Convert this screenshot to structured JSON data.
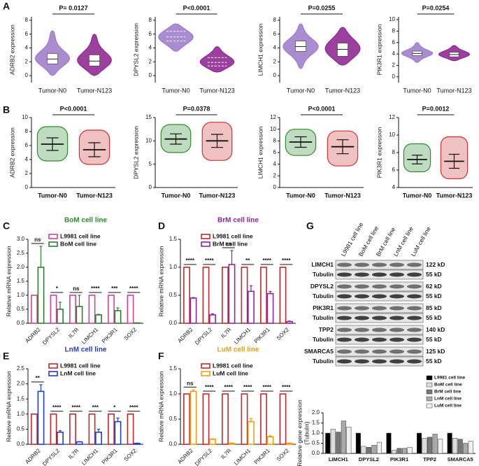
{
  "panel_labels": [
    "A",
    "B",
    "C",
    "D",
    "E",
    "F",
    "G"
  ],
  "chart_data": [
    {
      "type": "violin",
      "ylabel": "ADRB2 expression",
      "pvalue": "P= 0.0127",
      "inner": "box",
      "categories": [
        "Tumor-N0",
        "Tumor-N123"
      ],
      "colors": [
        "#9b78c8",
        "#8b1f8f"
      ],
      "stats": [
        {
          "min": 0,
          "q1": 1.7,
          "median": 2.4,
          "q3": 3.2,
          "max": 6.5
        },
        {
          "min": 0,
          "q1": 1.4,
          "median": 2.1,
          "q3": 3,
          "max": 6
        }
      ],
      "ylim": [
        -1,
        8.5
      ],
      "yticks": [
        0,
        2,
        4,
        6,
        8
      ]
    },
    {
      "type": "violin",
      "ylabel": "DPYSL2 expression",
      "pvalue": "P<0.0001",
      "inner": "quartiles",
      "categories": [
        "Tumor-N0",
        "Tumor-N123"
      ],
      "colors": [
        "#9b78c8",
        "#8b1f8f"
      ],
      "stats": [
        {
          "min": 3.5,
          "q1": 5,
          "median": 5.6,
          "q3": 6.4,
          "max": 7.5
        },
        {
          "min": 0.5,
          "q1": 1.4,
          "median": 1.9,
          "q3": 2.6,
          "max": 4.2
        }
      ],
      "ylim": [
        -1,
        8.5
      ],
      "yticks": [
        0,
        2,
        4,
        6,
        8
      ]
    },
    {
      "type": "violin",
      "ylabel": "LIMCH1 expression",
      "pvalue": "P=0.0255",
      "inner": "box",
      "categories": [
        "Tumor-N0",
        "Tumor-N123"
      ],
      "colors": [
        "#9b78c8",
        "#8b1f8f"
      ],
      "stats": [
        {
          "min": 1,
          "q1": 3.5,
          "median": 4.2,
          "q3": 5,
          "max": 7.5
        },
        {
          "min": 1.5,
          "q1": 2.8,
          "median": 3.8,
          "q3": 4.7,
          "max": 7
        }
      ],
      "ylim": [
        -1,
        8.5
      ],
      "yticks": [
        0,
        2,
        4,
        6,
        8
      ]
    },
    {
      "type": "violin",
      "ylabel": "PIK3R1 expression",
      "pvalue": "P=0.0254",
      "inner": "box",
      "categories": [
        "Tumor-N0",
        "Tumor-N123"
      ],
      "colors": [
        "#9b78c8",
        "#8b1f8f"
      ],
      "stats": [
        {
          "min": 2.5,
          "q1": 3.7,
          "median": 4.1,
          "q3": 4.5,
          "max": 6
        },
        {
          "min": 2.8,
          "q1": 3.5,
          "median": 3.9,
          "q3": 4.3,
          "max": 5.5
        }
      ],
      "ylim": [
        -1,
        10.5
      ],
      "yticks": [
        0,
        2,
        4,
        6,
        8,
        10
      ]
    },
    {
      "type": "dotplot",
      "ylabel": "ADRB2 expression",
      "pvalue": "P<0.0001",
      "categories": [
        "Tumor-N0",
        "Tumor-N123"
      ],
      "colors": [
        "#2e8b2e",
        "#cc3333"
      ],
      "groups": [
        {
          "mean": 6.2,
          "sd": 0.9,
          "min": 3.8,
          "max": 8.7
        },
        {
          "mean": 5.4,
          "sd": 1,
          "min": 3.3,
          "max": 8.2
        }
      ],
      "ylim": [
        0,
        10
      ],
      "yticks": [
        0,
        2,
        4,
        6,
        8,
        10
      ]
    },
    {
      "type": "dotplot",
      "ylabel": "DPYSL2 expression",
      "pvalue": "P=0.0378",
      "categories": [
        "Tumor-N0",
        "Tumor-N123"
      ],
      "colors": [
        "#2e8b2e",
        "#cc3333"
      ],
      "groups": [
        {
          "mean": 10.4,
          "sd": 1.1,
          "min": 7.5,
          "max": 13.5
        },
        {
          "mean": 10,
          "sd": 1.4,
          "min": 5.8,
          "max": 14
        }
      ],
      "ylim": [
        0,
        15
      ],
      "yticks": [
        0,
        5,
        10,
        15
      ]
    },
    {
      "type": "dotplot",
      "ylabel": "LIMCH1 expression",
      "pvalue": "P<0.0001",
      "categories": [
        "Tumor-N0",
        "Tumor-N123"
      ],
      "colors": [
        "#2e8b2e",
        "#cc3333"
      ],
      "groups": [
        {
          "mean": 7.8,
          "sd": 0.9,
          "min": 5.5,
          "max": 10
        },
        {
          "mean": 7,
          "sd": 1.2,
          "min": 3.7,
          "max": 9.7
        }
      ],
      "ylim": [
        0,
        12
      ],
      "yticks": [
        0,
        2,
        4,
        6,
        8,
        10,
        12
      ]
    },
    {
      "type": "dotplot",
      "ylabel": "PIK3R1 expression",
      "pvalue": "P=0.0012",
      "categories": [
        "Tumor-N0",
        "Tumor-N123"
      ],
      "colors": [
        "#2e8b2e",
        "#cc3333"
      ],
      "groups": [
        {
          "mean": 7.2,
          "sd": 0.5,
          "min": 5.8,
          "max": 9
        },
        {
          "mean": 7,
          "sd": 0.8,
          "min": 5,
          "max": 9.8
        }
      ],
      "ylim": [
        4,
        12
      ],
      "yticks": [
        4,
        6,
        8,
        10,
        12
      ]
    },
    {
      "type": "bar",
      "title": "BoM cell line",
      "title_color": "#2e8b2e",
      "fill_style": "outline",
      "ylabel": "Relative mRNA expression",
      "categories": [
        "ADRB2",
        "DPYSL2",
        "IL7R",
        "LIMCH1",
        "PIK3R1",
        "SOX2"
      ],
      "series": [
        {
          "name": "L9981 cell line",
          "color": "#d6409a",
          "values": [
            1,
            1,
            1,
            1,
            1,
            1
          ]
        },
        {
          "name": "BoM cell line",
          "color": "#2e7d32",
          "values": [
            2,
            0.5,
            0.6,
            0.3,
            0.45,
            0.01
          ],
          "errors": [
            0.75,
            0.25,
            0.4,
            0.02,
            0.1,
            0.005
          ]
        }
      ],
      "significance": [
        "ns",
        "*",
        "ns",
        "****",
        "***",
        "****"
      ],
      "ylim": [
        0,
        3
      ],
      "yticks": [
        {
          "value": 0,
          "label": "0.0"
        },
        0.5,
        {
          "value": 1,
          "label": "1.0"
        },
        1.5,
        {
          "value": 2,
          "label": "2.0"
        },
        2.5,
        {
          "value": 3,
          "label": "3.0"
        }
      ]
    },
    {
      "type": "bar",
      "title": "BrM cell line",
      "title_color": "#8e24aa",
      "fill_style": "outline",
      "ylabel": "Relative mRNA expression",
      "categories": [
        "ADRB2",
        "DPYSL2",
        "IL7R",
        "LIMCH1",
        "PIK3R1",
        "SOX2"
      ],
      "series": [
        {
          "name": "L9981 cell line",
          "color": "#c62828",
          "values": [
            1,
            1,
            1,
            1,
            1,
            1
          ]
        },
        {
          "name": "BrM cell line",
          "color": "#8e24aa",
          "values": [
            0.45,
            0.15,
            1.05,
            0.57,
            0.53,
            0.03
          ],
          "errors": [
            0.01,
            0.02,
            0.25,
            0.1,
            0.04,
            0.01
          ]
        }
      ],
      "significance": [
        "****",
        "****",
        "ns",
        "**",
        "****",
        "****"
      ],
      "ylim": [
        0,
        1.5
      ],
      "yticks": [
        {
          "value": 0,
          "label": "0.0"
        },
        0.5,
        {
          "value": 1,
          "label": "1.0"
        },
        1.5
      ]
    },
    {
      "type": "bar",
      "title": "LnM cell line",
      "title_color": "#1e3fc7",
      "fill_style": "outline",
      "ylabel": "Relative mRNA expression",
      "categories": [
        "ADRB2",
        "DPYSL2",
        "IL7R",
        "LIMCH1",
        "PIK3R1",
        "SOX2"
      ],
      "series": [
        {
          "name": "L9981 cell line",
          "color": "#c62828",
          "values": [
            1,
            1,
            1,
            1,
            1,
            1
          ]
        },
        {
          "name": "LnM cell line",
          "color": "#1e3fc7",
          "values": [
            1.75,
            0.4,
            0.08,
            0.4,
            0.75,
            0.03
          ],
          "errors": [
            0.22,
            0.05,
            0.01,
            0.1,
            0.12,
            0.01
          ]
        }
      ],
      "significance": [
        "**",
        "****",
        "****",
        "***",
        "*",
        "****"
      ],
      "ylim": [
        0,
        2.5
      ],
      "yticks": [
        {
          "value": 0,
          "label": "0.0"
        },
        0.5,
        {
          "value": 1,
          "label": "1.0"
        },
        1.5,
        {
          "value": 2,
          "label": "2.0"
        },
        2.5
      ]
    },
    {
      "type": "bar",
      "title": "LuM cell line",
      "title_color": "#f39c12",
      "fill_style": "outline",
      "ylabel": "Relative mRNA expression",
      "categories": [
        "ADRB2",
        "DPYSL2",
        "IL7R",
        "LIMCH1",
        "PIK3R1",
        "SOX2"
      ],
      "series": [
        {
          "name": "L9981 cell line",
          "color": "#c62828",
          "values": [
            1,
            1,
            1,
            1,
            1,
            1
          ]
        },
        {
          "name": "LuM cell line",
          "color": "#f39c12",
          "values": [
            1.05,
            0.1,
            0.02,
            0.45,
            0.15,
            0.02
          ],
          "errors": [
            0.03,
            0.01,
            0.005,
            0.06,
            0.02,
            0.005
          ]
        }
      ],
      "significance": [
        "ns",
        "****",
        "****",
        "****",
        "****",
        "****"
      ],
      "ylim": [
        0,
        1.5
      ],
      "yticks": [
        {
          "value": 0,
          "label": "0.0"
        },
        0.5,
        {
          "value": 1,
          "label": "1.0"
        },
        1.5
      ]
    },
    {
      "type": "bar",
      "fill_style": "solid",
      "legend": "upper right",
      "ylabel": [
        "Relative gene expression",
        "(Tubulin)"
      ],
      "categories": [
        "LIMCH1",
        "DPYSL2",
        "PIK3R1",
        "TPP2",
        "SMARCA5"
      ],
      "series": [
        {
          "name": "L9981 cell line",
          "color": "#000000",
          "values": [
            1,
            1,
            1,
            1,
            1
          ]
        },
        {
          "name": "BoM cell line",
          "color": "#dddddd",
          "values": [
            1.2,
            0.35,
            0.15,
            0.75,
            0.75
          ]
        },
        {
          "name": "BrM cell line",
          "color": "#777777",
          "values": [
            1.05,
            0.3,
            0.25,
            0.8,
            0.7
          ]
        },
        {
          "name": "LnM cell line",
          "color": "#aaaaaa",
          "values": [
            1.6,
            0.4,
            0.25,
            0.95,
            0.5
          ]
        },
        {
          "name": "LuM cell line",
          "color": "#f0f0f0",
          "values": [
            1.3,
            0.55,
            0.3,
            0.7,
            0.6
          ]
        }
      ],
      "ylim": [
        0,
        2
      ],
      "yticks": [
        {
          "value": 0,
          "label": "0.0"
        },
        0.5,
        {
          "value": 1,
          "label": "1.0"
        },
        1.5,
        {
          "value": 2,
          "label": "2.0"
        }
      ]
    }
  ],
  "blot": {
    "columns": [
      "L9981 cell line",
      "BoM cell line",
      "BrM cell line",
      "LnM cell line",
      "LuM cell line"
    ],
    "rows": [
      [
        "LIMCH1",
        "122 kD"
      ],
      [
        "Tubulin",
        "55 kD"
      ],
      [
        "DPYSL2",
        "62 kD"
      ],
      [
        "Tubulin",
        "55 kD"
      ],
      [
        "PIK3R1",
        "85 kD"
      ],
      [
        "Tubulin",
        "55 kD"
      ],
      [
        "TPP2",
        "140 kD"
      ],
      [
        "Tubulin",
        "55 kD"
      ],
      [
        "SMARCA5",
        "125 kD"
      ],
      [
        "Tubulin",
        "55 kD"
      ]
    ]
  }
}
